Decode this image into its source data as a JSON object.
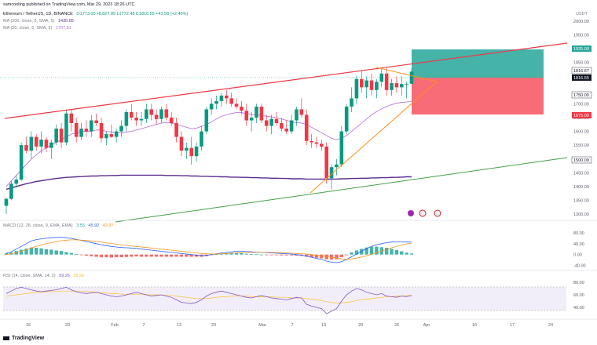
{
  "publisher": "samcooling published on TradingView.com, Mar 29, 2023 18:26 UTC",
  "currency": "USDT",
  "header": {
    "symbol": "Ethereum / TetherUS, 1D, BINANCE",
    "ohlc": "O1773.00 H1827.99 L1772.48 C1816.55 +43.56 (+2.46%)",
    "ma200": "MA (200, close, 0, SMA, 5)",
    "ma200_val": "1435.65",
    "ma20": "MA (20, close, 0, SMA, 5)",
    "ma20_val": "1707.81"
  },
  "macd": {
    "label": "MACD (12, 26, close, 9, EMA, EMA)",
    "v1": "3.55",
    "v2": "45.92",
    "v3": "42.37"
  },
  "rsi": {
    "label": "RSI (14, close, SMA, 14, 2)",
    "v1": "59.26",
    "v2": "59.56"
  },
  "price_axis": [
    "2000.00",
    "1950.00",
    "1900.00",
    "1850.00",
    "1800.00",
    "1750.00",
    "1700.00",
    "1650.00",
    "1600.00",
    "1550.00",
    "1500.00",
    "1450.00",
    "1400.00",
    "1350.00",
    "1300.00"
  ],
  "macd_axis": [
    "80.00",
    "40.00",
    "0.00",
    "-40.00"
  ],
  "rsi_axis": [
    "80.00",
    "60.00",
    "40.00"
  ],
  "time_axis": [
    "16",
    "23",
    "Feb",
    "7",
    "13",
    "20",
    "Mar",
    "7",
    "13",
    "20",
    "26",
    "Apr",
    "10",
    "17",
    "24"
  ],
  "tags": {
    "target": "1925.00",
    "last_high": "1816.67",
    "last": "1816.55",
    "support": "1750.00",
    "stop": "1675.00",
    "base": "1500.00"
  },
  "footer": "TradingView",
  "colors": {
    "up": "#089981",
    "down": "#f23645",
    "ma20": "#b36ad6",
    "ma200": "#5b2c8f",
    "trend_red": "#f23645",
    "trend_orange": "#f7931a",
    "trend_green": "#43a047"
  },
  "chart_data": {
    "type": "candlestick",
    "price_range": [
      1280,
      2020
    ],
    "candles": [
      [
        1330,
        1360,
        1300,
        1355
      ],
      [
        1355,
        1420,
        1350,
        1410
      ],
      [
        1410,
        1440,
        1395,
        1425
      ],
      [
        1425,
        1560,
        1420,
        1550
      ],
      [
        1550,
        1580,
        1520,
        1530
      ],
      [
        1530,
        1600,
        1500,
        1580
      ],
      [
        1580,
        1590,
        1530,
        1545
      ],
      [
        1545,
        1600,
        1520,
        1570
      ],
      [
        1570,
        1580,
        1525,
        1540
      ],
      [
        1540,
        1570,
        1500,
        1560
      ],
      [
        1560,
        1625,
        1550,
        1610
      ],
      [
        1610,
        1630,
        1540,
        1560
      ],
      [
        1560,
        1680,
        1550,
        1665
      ],
      [
        1665,
        1680,
        1600,
        1630
      ],
      [
        1630,
        1650,
        1560,
        1580
      ],
      [
        1580,
        1630,
        1570,
        1610
      ],
      [
        1610,
        1640,
        1580,
        1600
      ],
      [
        1600,
        1660,
        1580,
        1640
      ],
      [
        1640,
        1665,
        1620,
        1630
      ],
      [
        1630,
        1650,
        1560,
        1575
      ],
      [
        1575,
        1600,
        1550,
        1590
      ],
      [
        1590,
        1625,
        1575,
        1580
      ],
      [
        1580,
        1610,
        1560,
        1600
      ],
      [
        1600,
        1640,
        1580,
        1620
      ],
      [
        1620,
        1680,
        1600,
        1670
      ],
      [
        1670,
        1700,
        1640,
        1650
      ],
      [
        1650,
        1670,
        1620,
        1640
      ],
      [
        1640,
        1670,
        1620,
        1645
      ],
      [
        1645,
        1700,
        1630,
        1680
      ],
      [
        1680,
        1700,
        1640,
        1660
      ],
      [
        1660,
        1680,
        1625,
        1645
      ],
      [
        1645,
        1690,
        1630,
        1680
      ],
      [
        1680,
        1700,
        1640,
        1650
      ],
      [
        1650,
        1670,
        1620,
        1630
      ],
      [
        1630,
        1650,
        1560,
        1580
      ],
      [
        1580,
        1600,
        1510,
        1530
      ],
      [
        1530,
        1560,
        1500,
        1540
      ],
      [
        1540,
        1580,
        1480,
        1510
      ],
      [
        1510,
        1560,
        1490,
        1545
      ],
      [
        1545,
        1620,
        1530,
        1600
      ],
      [
        1600,
        1690,
        1590,
        1680
      ],
      [
        1680,
        1720,
        1660,
        1700
      ],
      [
        1700,
        1730,
        1680,
        1710
      ],
      [
        1710,
        1740,
        1690,
        1730
      ],
      [
        1730,
        1750,
        1700,
        1720
      ],
      [
        1720,
        1740,
        1690,
        1700
      ],
      [
        1700,
        1720,
        1680,
        1690
      ],
      [
        1690,
        1710,
        1660,
        1675
      ],
      [
        1675,
        1700,
        1620,
        1640
      ],
      [
        1640,
        1670,
        1600,
        1650
      ],
      [
        1650,
        1700,
        1630,
        1690
      ],
      [
        1690,
        1700,
        1630,
        1640
      ],
      [
        1640,
        1660,
        1600,
        1620
      ],
      [
        1620,
        1660,
        1590,
        1645
      ],
      [
        1645,
        1670,
        1620,
        1630
      ],
      [
        1630,
        1650,
        1600,
        1610
      ],
      [
        1610,
        1640,
        1590,
        1600
      ],
      [
        1600,
        1660,
        1590,
        1640
      ],
      [
        1640,
        1690,
        1620,
        1680
      ],
      [
        1680,
        1720,
        1650,
        1660
      ],
      [
        1660,
        1680,
        1550,
        1565
      ],
      [
        1565,
        1590,
        1540,
        1560
      ],
      [
        1560,
        1580,
        1540,
        1555
      ],
      [
        1555,
        1570,
        1530,
        1545
      ],
      [
        1545,
        1560,
        1410,
        1430
      ],
      [
        1430,
        1480,
        1390,
        1470
      ],
      [
        1470,
        1500,
        1440,
        1480
      ],
      [
        1480,
        1620,
        1470,
        1600
      ],
      [
        1600,
        1700,
        1590,
        1690
      ],
      [
        1690,
        1760,
        1670,
        1720
      ],
      [
        1720,
        1800,
        1700,
        1790
      ],
      [
        1790,
        1820,
        1740,
        1760
      ],
      [
        1760,
        1800,
        1720,
        1785
      ],
      [
        1785,
        1810,
        1730,
        1750
      ],
      [
        1750,
        1790,
        1720,
        1780
      ],
      [
        1780,
        1830,
        1760,
        1810
      ],
      [
        1810,
        1830,
        1730,
        1750
      ],
      [
        1750,
        1790,
        1730,
        1775
      ],
      [
        1775,
        1800,
        1740,
        1760
      ],
      [
        1760,
        1800,
        1730,
        1772
      ],
      [
        1772,
        1780,
        1720,
        1773
      ],
      [
        1773,
        1828,
        1772,
        1817
      ]
    ],
    "ma20": [
      1400,
      1420,
      1440,
      1460,
      1480,
      1500,
      1515,
      1530,
      1540,
      1550,
      1560,
      1570,
      1580,
      1590,
      1595,
      1600,
      1600,
      1600,
      1605,
      1605,
      1600,
      1598,
      1596,
      1595,
      1598,
      1600,
      1605,
      1610,
      1615,
      1620,
      1625,
      1630,
      1632,
      1630,
      1625,
      1620,
      1615,
      1610,
      1612,
      1618,
      1625,
      1635,
      1645,
      1655,
      1660,
      1665,
      1668,
      1668,
      1665,
      1662,
      1660,
      1658,
      1655,
      1652,
      1650,
      1645,
      1640,
      1635,
      1632,
      1630,
      1625,
      1615,
      1605,
      1595,
      1585,
      1575,
      1570,
      1575,
      1585,
      1600,
      1615,
      1630,
      1645,
      1660,
      1672,
      1682,
      1690,
      1697,
      1702,
      1705,
      1707,
      1708
    ],
    "ma200": [
      1390,
      1395,
      1400,
      1405,
      1410,
      1414,
      1418,
      1421,
      1424,
      1427,
      1429,
      1431,
      1433,
      1434,
      1435,
      1436,
      1437,
      1438,
      1438,
      1439,
      1439,
      1440,
      1440,
      1441,
      1441,
      1441,
      1441,
      1441,
      1441,
      1441,
      1441,
      1441,
      1440,
      1440,
      1440,
      1439,
      1439,
      1438,
      1438,
      1437,
      1437,
      1436,
      1436,
      1435,
      1435,
      1434,
      1434,
      1433,
      1433,
      1432,
      1432,
      1431,
      1431,
      1430,
      1430,
      1429,
      1429,
      1428,
      1428,
      1428,
      1427,
      1427,
      1427,
      1427,
      1427,
      1427,
      1427,
      1428,
      1428,
      1429,
      1429,
      1430,
      1430,
      1431,
      1431,
      1432,
      1432,
      1433,
      1433,
      1434,
      1435,
      1435
    ],
    "macd_line": [
      5,
      10,
      20,
      30,
      40,
      50,
      55,
      58,
      60,
      62,
      63,
      64,
      62,
      60,
      56,
      52,
      48,
      44,
      40,
      36,
      33,
      30,
      28,
      26,
      25,
      24,
      23,
      20,
      18,
      16,
      14,
      12,
      10,
      8,
      6,
      4,
      2,
      0,
      -2,
      -4,
      -3,
      0,
      3,
      6,
      8,
      10,
      12,
      12,
      11,
      10,
      9,
      8,
      7,
      6,
      5,
      4,
      3,
      2,
      0,
      -2,
      -6,
      -10,
      -14,
      -18,
      -24,
      -28,
      -30,
      -26,
      -18,
      -8,
      2,
      12,
      22,
      30,
      36,
      40,
      44,
      46,
      47,
      47,
      46,
      46
    ],
    "macd_signal": [
      0,
      3,
      7,
      12,
      18,
      24,
      30,
      35,
      40,
      44,
      48,
      51,
      53,
      54,
      54,
      53,
      52,
      50,
      48,
      46,
      43,
      41,
      38,
      36,
      34,
      32,
      30,
      28,
      26,
      24,
      22,
      20,
      18,
      16,
      14,
      12,
      10,
      8,
      6,
      4,
      3,
      2,
      2,
      3,
      4,
      5,
      6,
      7,
      8,
      8,
      8,
      8,
      8,
      8,
      7,
      7,
      6,
      5,
      4,
      3,
      2,
      0,
      -2,
      -4,
      -7,
      -10,
      -13,
      -16,
      -17,
      -16,
      -13,
      -9,
      -4,
      1,
      7,
      13,
      19,
      25,
      30,
      35,
      39,
      42
    ],
    "rsi": [
      62,
      66,
      70,
      72,
      70,
      68,
      66,
      65,
      66,
      67,
      68,
      70,
      72,
      68,
      65,
      63,
      62,
      63,
      64,
      62,
      60,
      58,
      57,
      58,
      60,
      62,
      64,
      62,
      60,
      58,
      59,
      60,
      58,
      56,
      52,
      48,
      47,
      46,
      48,
      52,
      58,
      62,
      64,
      66,
      64,
      62,
      60,
      58,
      56,
      55,
      57,
      59,
      57,
      55,
      54,
      53,
      52,
      54,
      56,
      55,
      45,
      42,
      40,
      38,
      30,
      34,
      38,
      50,
      60,
      66,
      70,
      68,
      64,
      62,
      60,
      62,
      58,
      57,
      56,
      58,
      57,
      59
    ],
    "rsi_ma": [
      58,
      59,
      60,
      61,
      62,
      63,
      64,
      64,
      65,
      65,
      65,
      66,
      66,
      66,
      66,
      66,
      65,
      65,
      64,
      64,
      63,
      62,
      62,
      61,
      61,
      61,
      61,
      61,
      60,
      60,
      60,
      60,
      59,
      59,
      58,
      57,
      56,
      55,
      54,
      54,
      54,
      55,
      56,
      57,
      57,
      58,
      58,
      58,
      58,
      57,
      57,
      57,
      57,
      57,
      56,
      56,
      56,
      55,
      55,
      55,
      54,
      53,
      52,
      51,
      49,
      48,
      47,
      47,
      48,
      49,
      51,
      52,
      53,
      54,
      55,
      56,
      57,
      57,
      58,
      58,
      59,
      59
    ]
  }
}
